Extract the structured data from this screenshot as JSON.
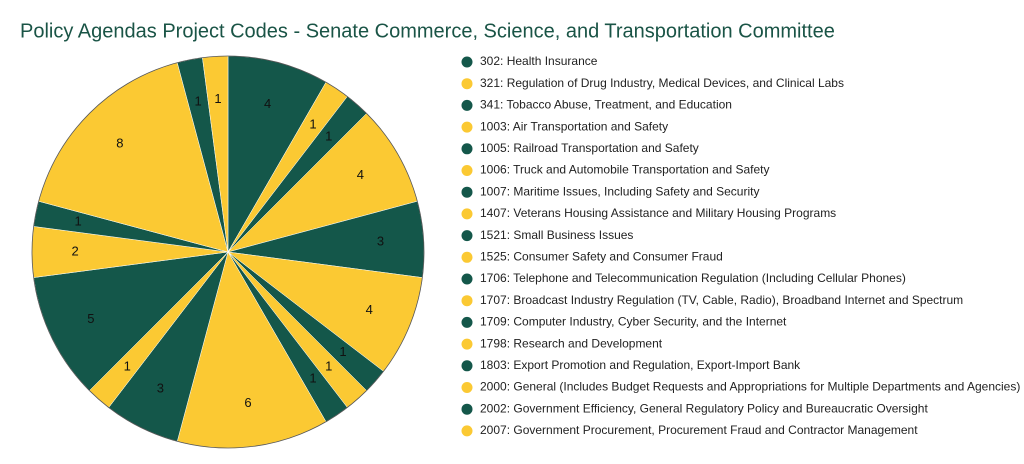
{
  "chart_data": {
    "type": "pie",
    "title": "Policy Agendas Project Codes - Senate Commerce, Science, and Transportation Committee",
    "categories": [
      "302: Health Insurance",
      "321: Regulation of Drug Industry, Medical Devices, and Clinical Labs",
      "341: Tobacco Abuse, Treatment, and Education",
      "1003: Air Transportation and Safety",
      "1005: Railroad Transportation and Safety",
      "1006: Truck and Automobile Transportation and Safety",
      "1007: Maritime Issues, Including Safety and Security",
      "1407: Veterans Housing Assistance and Military Housing Programs",
      "1521: Small Business Issues",
      "1525: Consumer Safety and Consumer Fraud",
      "1706: Telephone and Telecommunication Regulation (Including Cellular Phones)",
      "1707: Broadcast Industry Regulation (TV, Cable, Radio), Broadband Internet and Spectrum",
      "1709: Computer Industry, Cyber Security, and the Internet",
      "1798: Research and Development",
      "1803: Export Promotion and Regulation, Export-Import Bank",
      "2000: General (Includes Budget Requests and Appropriations for Multiple Departments and Agencies)",
      "2002: Government Efficiency, General Regulatory Policy and Bureaucratic Oversight",
      "2007: Government Procurement, Procurement Fraud and Contractor Management"
    ],
    "values": [
      4,
      1,
      1,
      4,
      3,
      4,
      1,
      1,
      1,
      6,
      3,
      1,
      5,
      2,
      1,
      8,
      1,
      1
    ],
    "colors": [
      "#14574a",
      "#fbc933",
      "#14574a",
      "#fbc933",
      "#14574a",
      "#fbc933",
      "#14574a",
      "#fbc933",
      "#14574a",
      "#fbc933",
      "#14574a",
      "#fbc933",
      "#14574a",
      "#fbc933",
      "#14574a",
      "#fbc933",
      "#14574a",
      "#fbc933"
    ]
  }
}
